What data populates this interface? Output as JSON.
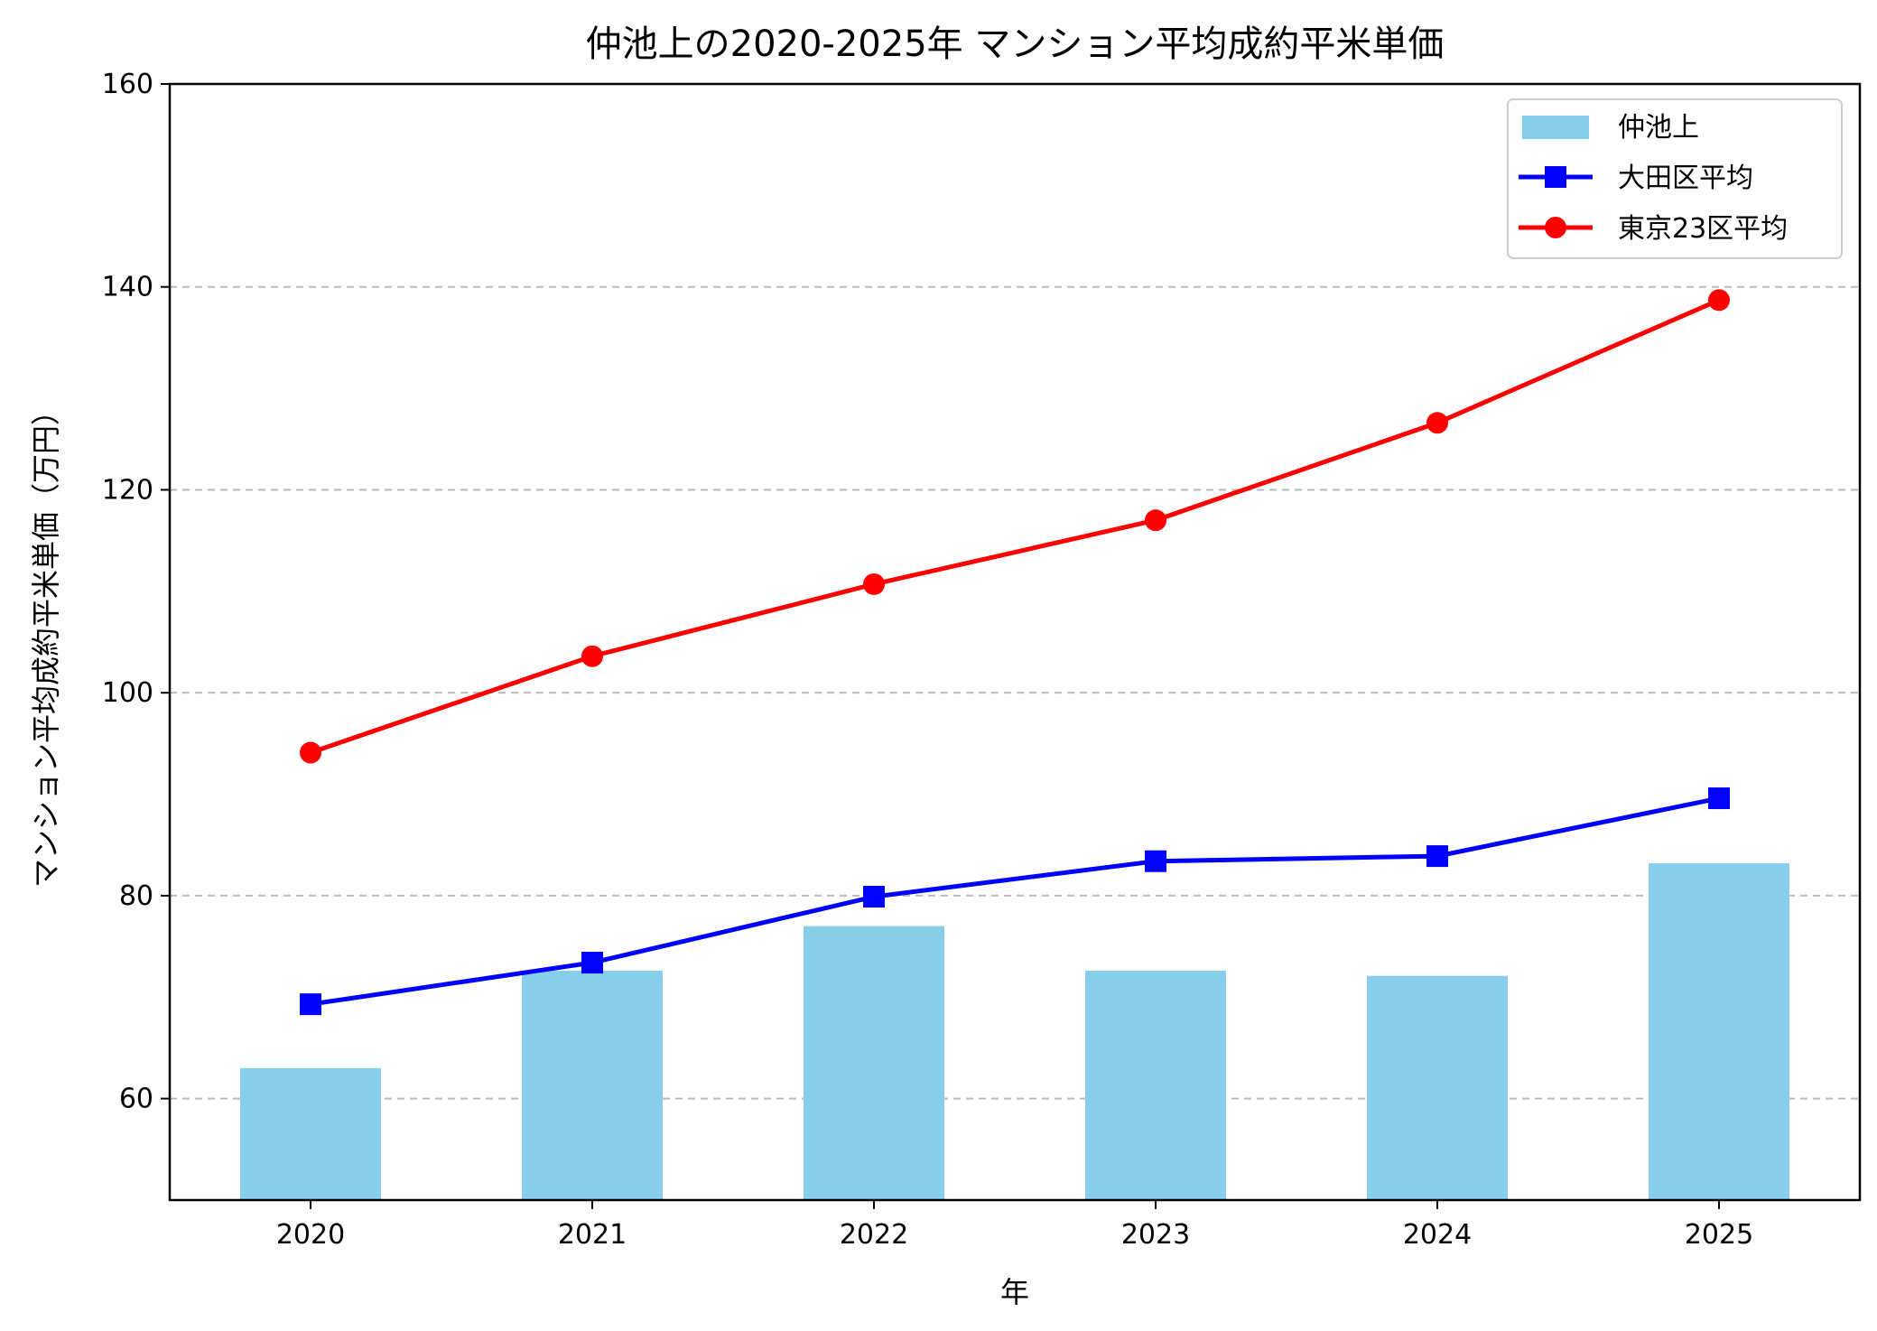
{
  "chart_data": {
    "type": "bar+line",
    "title": "仲池上の2020-2025年 マンション平均成約平米単価",
    "xlabel": "年",
    "ylabel": "マンション平均成約平米単価（万円）",
    "categories": [
      "2020",
      "2021",
      "2022",
      "2023",
      "2024",
      "2025"
    ],
    "ylim": [
      50,
      160
    ],
    "yticks": [
      60,
      80,
      100,
      120,
      140,
      160
    ],
    "grid": "y-dashed",
    "legend_position": "top-right",
    "series": [
      {
        "name": "仲池上",
        "type": "bar",
        "color": "#87CEEB",
        "values": [
          63.0,
          72.6,
          77.0,
          72.6,
          72.1,
          83.2
        ]
      },
      {
        "name": "大田区平均",
        "type": "line",
        "marker": "square",
        "color": "#0000FF",
        "values": [
          69.3,
          73.4,
          79.9,
          83.4,
          83.9,
          89.6
        ]
      },
      {
        "name": "東京23区平均",
        "type": "line",
        "marker": "circle",
        "color": "#FF0000",
        "values": [
          94.1,
          103.6,
          110.7,
          117.0,
          126.6,
          138.7
        ]
      }
    ]
  }
}
